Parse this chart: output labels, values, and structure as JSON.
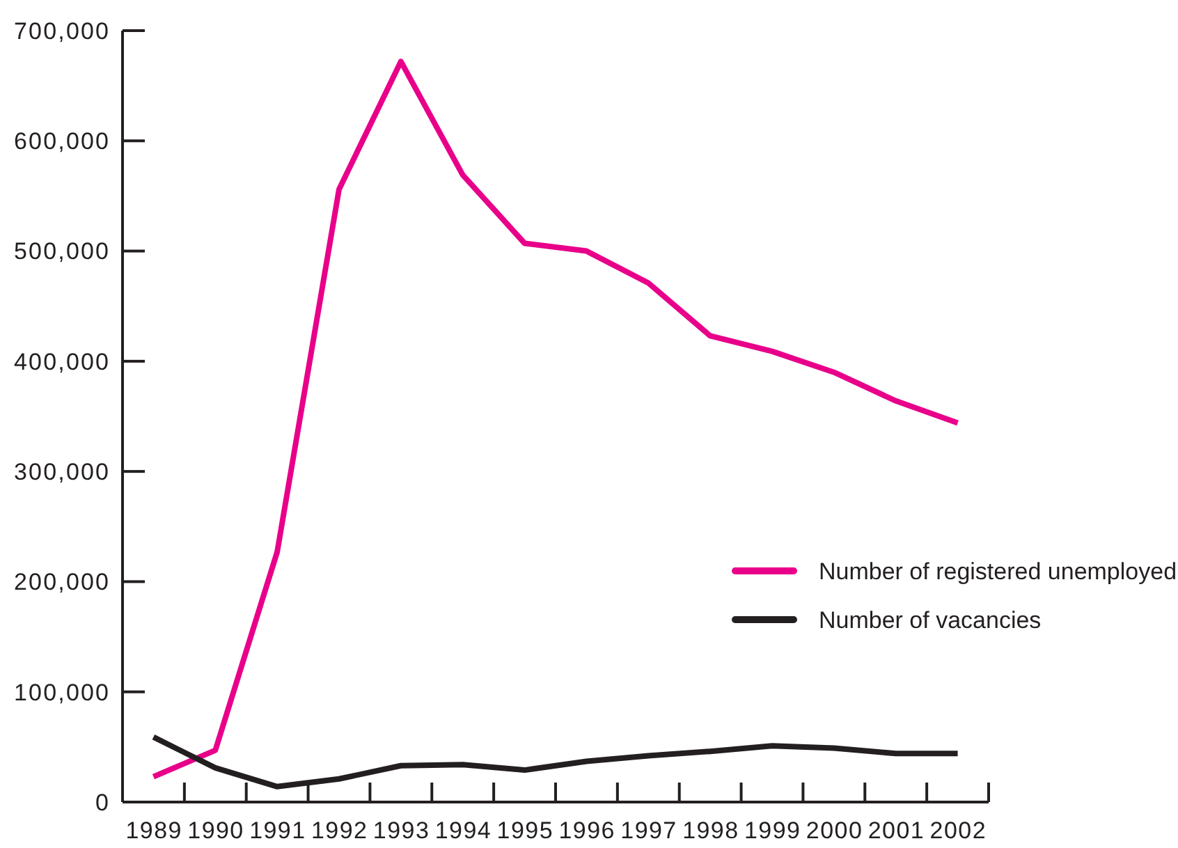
{
  "chart_data": {
    "type": "line",
    "categories": [
      "1989",
      "1990",
      "1991",
      "1992",
      "1993",
      "1994",
      "1995",
      "1996",
      "1997",
      "1998",
      "1999",
      "2000",
      "2001",
      "2002"
    ],
    "series": [
      {
        "name": "Number of registered unemployed",
        "color": "#e8008a",
        "values": [
          23000,
          47000,
          227000,
          556000,
          672000,
          569000,
          507000,
          500000,
          471000,
          423000,
          409000,
          390000,
          364000,
          344000
        ]
      },
      {
        "name": "Number of vacancies",
        "color": "#231f20",
        "values": [
          59000,
          31000,
          14000,
          21000,
          33000,
          34000,
          29000,
          37000,
          42000,
          46000,
          51000,
          49000,
          44000,
          44000
        ]
      }
    ],
    "ylim": [
      0,
      700000
    ],
    "yticks": [
      {
        "value": 0,
        "label": "0"
      },
      {
        "value": 100000,
        "label": "100,000"
      },
      {
        "value": 200000,
        "label": "200,000"
      },
      {
        "value": 300000,
        "label": "300,000"
      },
      {
        "value": 400000,
        "label": "400,000"
      },
      {
        "value": 500000,
        "label": "500,000"
      },
      {
        "value": 600000,
        "label": "600,000"
      },
      {
        "value": 700000,
        "label": "700,000"
      }
    ],
    "grid": false,
    "legend": "right",
    "marker": "none",
    "line_style": "solid"
  }
}
